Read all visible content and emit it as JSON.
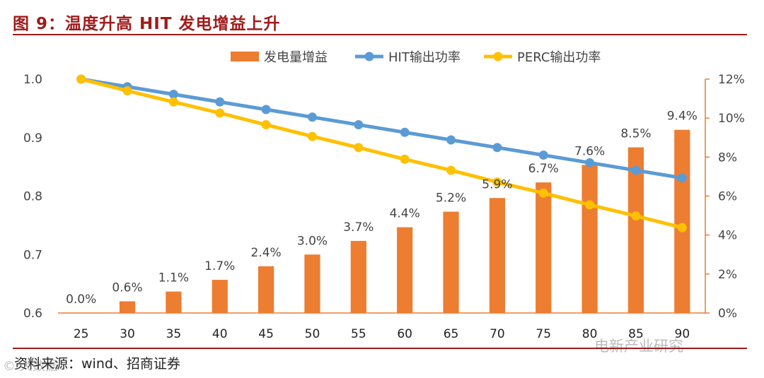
{
  "figure": {
    "title": "图 9：温度升高 HIT 发电增益上升",
    "source": "资料来源：wind、招商证券",
    "watermark_right": "电新产业研究",
    "watermark_left": "© 大数据"
  },
  "chart_data": {
    "type": "bar+line",
    "title": "图 9：温度升高 HIT 发电增益上升",
    "categories": [
      "25",
      "30",
      "35",
      "40",
      "45",
      "50",
      "55",
      "60",
      "65",
      "70",
      "75",
      "80",
      "85",
      "90"
    ],
    "series": [
      {
        "name": "发电量增益",
        "kind": "bar",
        "axis": "right",
        "color": "#ED7D31",
        "values": [
          0.0,
          0.6,
          1.1,
          1.7,
          2.4,
          3.0,
          3.7,
          4.4,
          5.2,
          5.9,
          6.7,
          7.6,
          8.5,
          9.4
        ],
        "labels": [
          "0.0%",
          "0.6%",
          "1.1%",
          "1.7%",
          "2.4%",
          "3.0%",
          "3.7%",
          "4.4%",
          "5.2%",
          "5.9%",
          "6.7%",
          "7.6%",
          "8.5%",
          "9.4%"
        ]
      },
      {
        "name": "HIT输出功率",
        "kind": "line",
        "axis": "left",
        "color": "#5B9BD5",
        "values": [
          1.0,
          0.987,
          0.974,
          0.961,
          0.948,
          0.935,
          0.922,
          0.909,
          0.896,
          0.883,
          0.87,
          0.857,
          0.844,
          0.831
        ]
      },
      {
        "name": "PERC输出功率",
        "kind": "line",
        "axis": "left",
        "color": "#FFC000",
        "values": [
          1.0,
          0.98,
          0.961,
          0.942,
          0.922,
          0.902,
          0.883,
          0.863,
          0.844,
          0.824,
          0.805,
          0.785,
          0.766,
          0.746
        ]
      }
    ],
    "y_left": {
      "min": 0.6,
      "max": 1.0,
      "ticks": [
        0.6,
        0.7,
        0.8,
        0.9,
        1.0
      ],
      "tick_labels": [
        "0.6",
        "0.7",
        "0.8",
        "0.9",
        "1.0"
      ]
    },
    "y_right": {
      "min": 0,
      "max": 12,
      "ticks": [
        0,
        2,
        4,
        6,
        8,
        10,
        12
      ],
      "tick_labels": [
        "0%",
        "2%",
        "4%",
        "6%",
        "8%",
        "10%",
        "12%"
      ]
    },
    "legend_position": "top",
    "grid": false,
    "axis_color": "#ED7D31"
  }
}
